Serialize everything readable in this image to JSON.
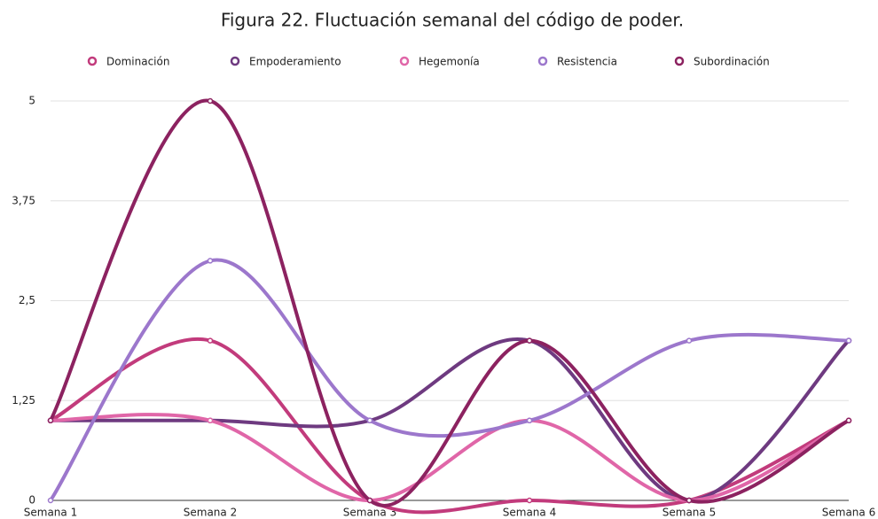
{
  "chart_data": {
    "type": "line",
    "title": "Figura 22. Fluctuación semanal del código de poder.",
    "categories": [
      "Semana 1",
      "Semana 2",
      "Semana 3",
      "Semana 4",
      "Semana 5",
      "Semana 6"
    ],
    "series": [
      {
        "name": "Dominación",
        "color": "#c23b7c",
        "values": [
          1,
          2,
          0,
          0,
          0,
          1
        ]
      },
      {
        "name": "Empoderamiento",
        "color": "#6e3a80",
        "values": [
          1,
          1,
          1,
          2,
          0,
          2
        ]
      },
      {
        "name": "Hegemonía",
        "color": "#e066a8",
        "values": [
          1,
          1,
          0,
          1,
          0,
          1
        ]
      },
      {
        "name": "Resistencia",
        "color": "#9c77cc",
        "values": [
          0,
          3,
          1,
          1,
          2,
          2
        ]
      },
      {
        "name": "Subordinación",
        "color": "#8c2260",
        "values": [
          1,
          5,
          0,
          2,
          0,
          1
        ]
      }
    ],
    "ylim": [
      0,
      5
    ],
    "yticks": [
      0,
      {
        "value": 1.25,
        "label": "1,25"
      },
      {
        "value": 2.5,
        "label": "2,5"
      },
      {
        "value": 3.75,
        "label": "3,75"
      },
      5
    ],
    "grid": true,
    "smooth": true,
    "legend": "top"
  }
}
